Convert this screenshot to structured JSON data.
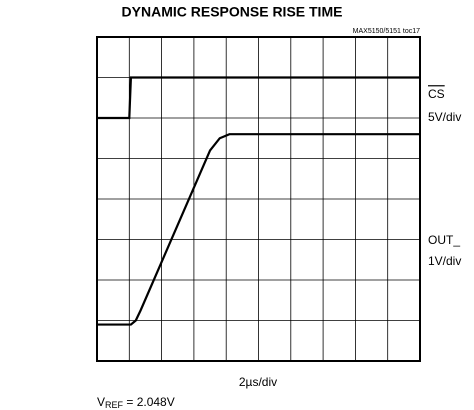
{
  "chart_data": {
    "type": "line",
    "title": "DYNAMIC RESPONSE RISE TIME",
    "subtitle": "MAX5150/5151 toc17",
    "x_label": "2µs/div",
    "annotation": [
      "V",
      "REF",
      " = 2.048V"
    ],
    "xlim": [
      0,
      10
    ],
    "ylim": [
      0,
      8
    ],
    "grid": {
      "x_divisions": 10,
      "y_divisions": 8
    },
    "series": [
      {
        "name": "CS",
        "scale": "5V/div",
        "color": "#000000",
        "x": [
          0,
          1.0,
          1.05,
          10
        ],
        "values": [
          6.0,
          6.0,
          7.0,
          7.0
        ]
      },
      {
        "name": "OUT_",
        "scale": "1V/div",
        "color": "#000000",
        "x": [
          0,
          1.05,
          1.2,
          1.35,
          3.5,
          3.8,
          4.1,
          10
        ],
        "values": [
          0.9,
          0.9,
          1.0,
          1.25,
          5.2,
          5.5,
          5.6,
          5.6
        ]
      }
    ]
  }
}
